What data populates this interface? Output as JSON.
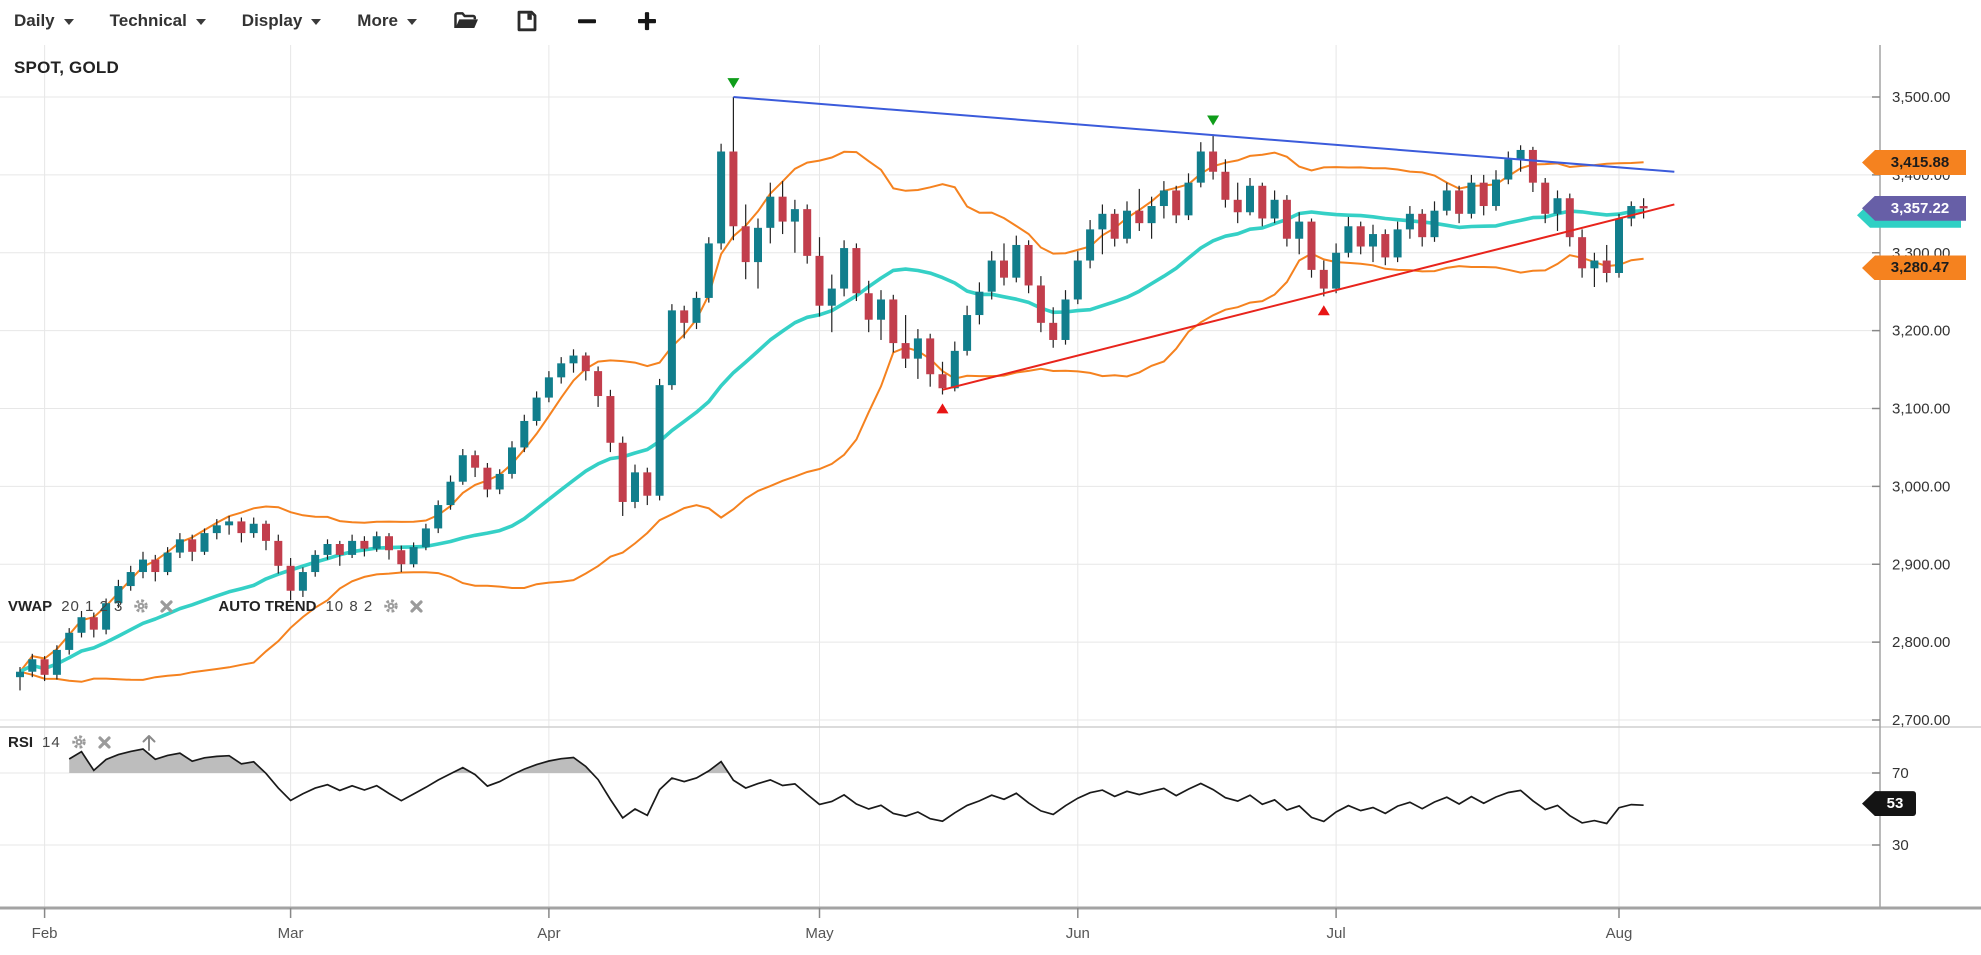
{
  "toolbar": {
    "menus": [
      {
        "label": "Daily"
      },
      {
        "label": "Technical"
      },
      {
        "label": "Display"
      },
      {
        "label": "More"
      }
    ]
  },
  "symbol_label": "SPOT, GOLD",
  "legends": {
    "vwap": {
      "name": "VWAP",
      "params": "20 1 2 3"
    },
    "auto_trend": {
      "name": "AUTO TREND",
      "params": "10 8 2"
    },
    "rsi": {
      "name": "RSI",
      "params": "14"
    }
  },
  "price_tags": [
    {
      "label": "3,415.88",
      "price": 3415.88,
      "role": "band-upper",
      "color": "#f5821f",
      "text_color": "#1c1c1c"
    },
    {
      "label": "3,357.22",
      "price": 3357.22,
      "role": "last-price",
      "color": "#675fa7",
      "text_color": "#ffffff",
      "shadow_color": "#2fd0c4"
    },
    {
      "label": "3,280.47",
      "price": 3280.47,
      "role": "band-lower",
      "color": "#f5821f",
      "text_color": "#1c1c1c"
    }
  ],
  "rsi_tag": {
    "label": "53",
    "value": 53,
    "color": "#141414",
    "text_color": "#ffffff"
  },
  "chart_data": {
    "type": "candlestick",
    "title": "SPOT, GOLD",
    "timeframe": "Daily",
    "y_axis": {
      "min": 2700,
      "max": 3500,
      "ticks": [
        {
          "value": 3500,
          "label": "3,500.00"
        },
        {
          "value": 3400,
          "label": "3,400.00"
        },
        {
          "value": 3300,
          "label": "3,300.00"
        },
        {
          "value": 3200,
          "label": "3,200.00"
        },
        {
          "value": 3100,
          "label": "3,100.00"
        },
        {
          "value": 3000,
          "label": "3,000.00"
        },
        {
          "value": 2900,
          "label": "2,900.00"
        },
        {
          "value": 2800,
          "label": "2,800.00"
        },
        {
          "value": 2700,
          "label": "2,700.00"
        }
      ]
    },
    "x_axis": {
      "months": [
        {
          "label": "Feb",
          "idx": 2
        },
        {
          "label": "Mar",
          "idx": 22
        },
        {
          "label": "Apr",
          "idx": 43
        },
        {
          "label": "May",
          "idx": 65
        },
        {
          "label": "Jun",
          "idx": 86
        },
        {
          "label": "Jul",
          "idx": 107
        },
        {
          "label": "Aug",
          "idx": 130
        }
      ]
    },
    "candles": [
      [
        2755,
        2768,
        2738,
        2762
      ],
      [
        2762,
        2785,
        2755,
        2778
      ],
      [
        2778,
        2782,
        2750,
        2758
      ],
      [
        2758,
        2796,
        2752,
        2790
      ],
      [
        2790,
        2818,
        2784,
        2812
      ],
      [
        2812,
        2840,
        2806,
        2832
      ],
      [
        2832,
        2838,
        2806,
        2816
      ],
      [
        2816,
        2856,
        2810,
        2850
      ],
      [
        2850,
        2880,
        2844,
        2872
      ],
      [
        2872,
        2898,
        2866,
        2890
      ],
      [
        2890,
        2916,
        2882,
        2906
      ],
      [
        2906,
        2912,
        2878,
        2890
      ],
      [
        2890,
        2922,
        2886,
        2915
      ],
      [
        2915,
        2940,
        2908,
        2932
      ],
      [
        2932,
        2938,
        2904,
        2916
      ],
      [
        2916,
        2946,
        2912,
        2940
      ],
      [
        2940,
        2958,
        2932,
        2950
      ],
      [
        2950,
        2962,
        2938,
        2955
      ],
      [
        2955,
        2960,
        2928,
        2940
      ],
      [
        2940,
        2960,
        2934,
        2952
      ],
      [
        2952,
        2956,
        2918,
        2930
      ],
      [
        2930,
        2938,
        2888,
        2898
      ],
      [
        2898,
        2908,
        2854,
        2866
      ],
      [
        2866,
        2896,
        2858,
        2890
      ],
      [
        2890,
        2918,
        2884,
        2912
      ],
      [
        2912,
        2932,
        2906,
        2926
      ],
      [
        2926,
        2930,
        2898,
        2912
      ],
      [
        2912,
        2938,
        2908,
        2930
      ],
      [
        2930,
        2936,
        2910,
        2920
      ],
      [
        2920,
        2942,
        2916,
        2936
      ],
      [
        2936,
        2940,
        2906,
        2918
      ],
      [
        2918,
        2924,
        2890,
        2900
      ],
      [
        2900,
        2928,
        2896,
        2922
      ],
      [
        2922,
        2952,
        2918,
        2946
      ],
      [
        2946,
        2982,
        2940,
        2976
      ],
      [
        2976,
        3014,
        2970,
        3006
      ],
      [
        3006,
        3048,
        3002,
        3040
      ],
      [
        3040,
        3046,
        3012,
        3024
      ],
      [
        3024,
        3030,
        2986,
        2996
      ],
      [
        2996,
        3022,
        2990,
        3016
      ],
      [
        3016,
        3058,
        3010,
        3050
      ],
      [
        3050,
        3092,
        3044,
        3084
      ],
      [
        3084,
        3122,
        3078,
        3114
      ],
      [
        3114,
        3148,
        3108,
        3140
      ],
      [
        3140,
        3166,
        3132,
        3158
      ],
      [
        3158,
        3176,
        3146,
        3168
      ],
      [
        3168,
        3172,
        3136,
        3148
      ],
      [
        3148,
        3154,
        3102,
        3116
      ],
      [
        3116,
        3124,
        3044,
        3056
      ],
      [
        3056,
        3064,
        2962,
        2980
      ],
      [
        2980,
        3028,
        2972,
        3018
      ],
      [
        3018,
        3024,
        2976,
        2988
      ],
      [
        2988,
        3138,
        2982,
        3130
      ],
      [
        3130,
        3234,
        3124,
        3226
      ],
      [
        3226,
        3232,
        3190,
        3210
      ],
      [
        3210,
        3250,
        3202,
        3242
      ],
      [
        3242,
        3320,
        3236,
        3312
      ],
      [
        3312,
        3440,
        3304,
        3430
      ],
      [
        3430,
        3500,
        3316,
        3334
      ],
      [
        3334,
        3362,
        3266,
        3288
      ],
      [
        3288,
        3344,
        3254,
        3332
      ],
      [
        3332,
        3390,
        3312,
        3372
      ],
      [
        3372,
        3392,
        3324,
        3340
      ],
      [
        3340,
        3368,
        3300,
        3356
      ],
      [
        3356,
        3362,
        3286,
        3296
      ],
      [
        3296,
        3320,
        3218,
        3232
      ],
      [
        3232,
        3272,
        3198,
        3254
      ],
      [
        3254,
        3316,
        3244,
        3306
      ],
      [
        3306,
        3312,
        3238,
        3248
      ],
      [
        3248,
        3264,
        3198,
        3214
      ],
      [
        3214,
        3252,
        3188,
        3240
      ],
      [
        3240,
        3246,
        3172,
        3184
      ],
      [
        3184,
        3220,
        3152,
        3164
      ],
      [
        3164,
        3202,
        3138,
        3190
      ],
      [
        3190,
        3196,
        3128,
        3144
      ],
      [
        3144,
        3160,
        3118,
        3126
      ],
      [
        3126,
        3186,
        3122,
        3174
      ],
      [
        3174,
        3232,
        3168,
        3220
      ],
      [
        3220,
        3262,
        3208,
        3250
      ],
      [
        3250,
        3302,
        3240,
        3290
      ],
      [
        3290,
        3312,
        3258,
        3268
      ],
      [
        3268,
        3322,
        3262,
        3310
      ],
      [
        3310,
        3316,
        3248,
        3258
      ],
      [
        3258,
        3270,
        3198,
        3210
      ],
      [
        3210,
        3230,
        3178,
        3188
      ],
      [
        3188,
        3252,
        3182,
        3240
      ],
      [
        3240,
        3302,
        3234,
        3290
      ],
      [
        3290,
        3342,
        3280,
        3330
      ],
      [
        3330,
        3362,
        3298,
        3350
      ],
      [
        3350,
        3356,
        3308,
        3318
      ],
      [
        3318,
        3366,
        3312,
        3354
      ],
      [
        3354,
        3382,
        3328,
        3338
      ],
      [
        3338,
        3372,
        3318,
        3360
      ],
      [
        3360,
        3392,
        3344,
        3380
      ],
      [
        3380,
        3386,
        3338,
        3348
      ],
      [
        3348,
        3402,
        3342,
        3390
      ],
      [
        3390,
        3442,
        3384,
        3430
      ],
      [
        3430,
        3452,
        3394,
        3404
      ],
      [
        3404,
        3420,
        3358,
        3368
      ],
      [
        3368,
        3390,
        3338,
        3352
      ],
      [
        3352,
        3396,
        3348,
        3386
      ],
      [
        3386,
        3390,
        3334,
        3344
      ],
      [
        3344,
        3380,
        3338,
        3368
      ],
      [
        3368,
        3374,
        3308,
        3318
      ],
      [
        3318,
        3352,
        3298,
        3340
      ],
      [
        3340,
        3344,
        3268,
        3278
      ],
      [
        3278,
        3290,
        3244,
        3254
      ],
      [
        3254,
        3312,
        3248,
        3300
      ],
      [
        3300,
        3346,
        3294,
        3334
      ],
      [
        3334,
        3340,
        3298,
        3308
      ],
      [
        3308,
        3336,
        3288,
        3324
      ],
      [
        3324,
        3330,
        3284,
        3294
      ],
      [
        3294,
        3340,
        3288,
        3330
      ],
      [
        3330,
        3360,
        3318,
        3350
      ],
      [
        3350,
        3356,
        3308,
        3320
      ],
      [
        3320,
        3366,
        3314,
        3354
      ],
      [
        3354,
        3390,
        3348,
        3380
      ],
      [
        3380,
        3386,
        3338,
        3350
      ],
      [
        3350,
        3400,
        3344,
        3390
      ],
      [
        3390,
        3400,
        3348,
        3360
      ],
      [
        3360,
        3406,
        3354,
        3394
      ],
      [
        3394,
        3430,
        3388,
        3420
      ],
      [
        3420,
        3438,
        3404,
        3432
      ],
      [
        3432,
        3436,
        3378,
        3390
      ],
      [
        3390,
        3396,
        3338,
        3350
      ],
      [
        3350,
        3380,
        3328,
        3370
      ],
      [
        3370,
        3376,
        3308,
        3320
      ],
      [
        3320,
        3330,
        3268,
        3280
      ],
      [
        3280,
        3300,
        3256,
        3290
      ],
      [
        3290,
        3310,
        3262,
        3274
      ],
      [
        3274,
        3350,
        3268,
        3344
      ],
      [
        3344,
        3366,
        3334,
        3360
      ],
      [
        3360,
        3370,
        3344,
        3357
      ]
    ],
    "colors": {
      "up": "#117e8c",
      "down": "#c23e4c",
      "wick": "#222222",
      "vwap": "#35d0c6",
      "band": "#f5821f",
      "trend_support": "#e8241c",
      "trend_resistance": "#3b5bdb",
      "marker_high": "#0f9d1a",
      "marker_low": "#e81515",
      "rsi_line": "#1a1a1a",
      "rsi_fill": "#bdbdbd",
      "grid": "#e7e7e7",
      "axis": "#a3a3a3"
    },
    "indicators": {
      "vwap": {
        "period": 20,
        "band_mult": 1.5
      },
      "rsi": {
        "period": 14,
        "levels": [
          {
            "value": 70,
            "label": "70"
          },
          {
            "value": 30,
            "label": "30"
          }
        ],
        "last_value": 53
      },
      "auto_trend": {
        "lines": [
          {
            "from": {
              "i": 58,
              "p": 3500
            },
            "to": {
              "i": 134.5,
              "p": 3404
            },
            "color": "#3b5bdb"
          },
          {
            "from": {
              "i": 75,
              "p": 3124
            },
            "to": {
              "i": 134.5,
              "p": 3362
            },
            "color": "#e8241c"
          }
        ],
        "markers": [
          {
            "i": 58,
            "p": 3505,
            "dir": "down",
            "color": "#0f9d1a"
          },
          {
            "i": 97,
            "p": 3457,
            "dir": "down",
            "color": "#0f9d1a"
          },
          {
            "i": 75,
            "p": 3113,
            "dir": "up",
            "color": "#e81515"
          },
          {
            "i": 106,
            "p": 3239,
            "dir": "up",
            "color": "#e81515"
          }
        ]
      }
    }
  }
}
